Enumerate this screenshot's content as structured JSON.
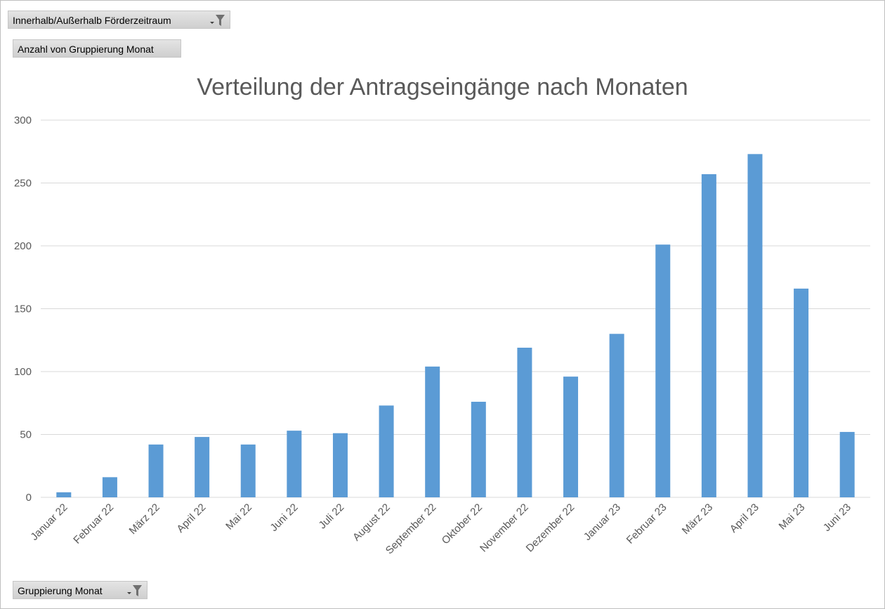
{
  "pivot": {
    "filter_field": "Innerhalb/Außerhalb Förderzeitraum",
    "value_field": "Anzahl von Gruppierung Monat",
    "axis_field": "Gruppierung Monat"
  },
  "icons": {
    "filter": "filter-funnel-icon",
    "dropdown": "dropdown-arrow-icon"
  },
  "colors": {
    "bar": "#5b9bd5",
    "gridline": "#d9d9d9",
    "text": "#595959"
  },
  "chart_data": {
    "type": "bar",
    "title": "Verteilung der Antragseingänge nach Monaten",
    "xlabel": "",
    "ylabel": "",
    "categories": [
      "Januar 22",
      "Februar 22",
      "März 22",
      "April 22",
      "Mai 22",
      "Juni 22",
      "Juli 22",
      "August 22",
      "September 22",
      "Oktober 22",
      "November 22",
      "Dezember 22",
      "Januar 23",
      "Februar 23",
      "März 23",
      "April 23",
      "Mai 23",
      "Juni 23"
    ],
    "values": [
      4,
      16,
      42,
      48,
      42,
      53,
      51,
      73,
      104,
      76,
      119,
      96,
      130,
      201,
      257,
      273,
      166,
      52
    ],
    "ylim": [
      0,
      300
    ],
    "yticks": [
      0,
      50,
      100,
      150,
      200,
      250,
      300
    ],
    "grid": true,
    "legend": "none"
  }
}
